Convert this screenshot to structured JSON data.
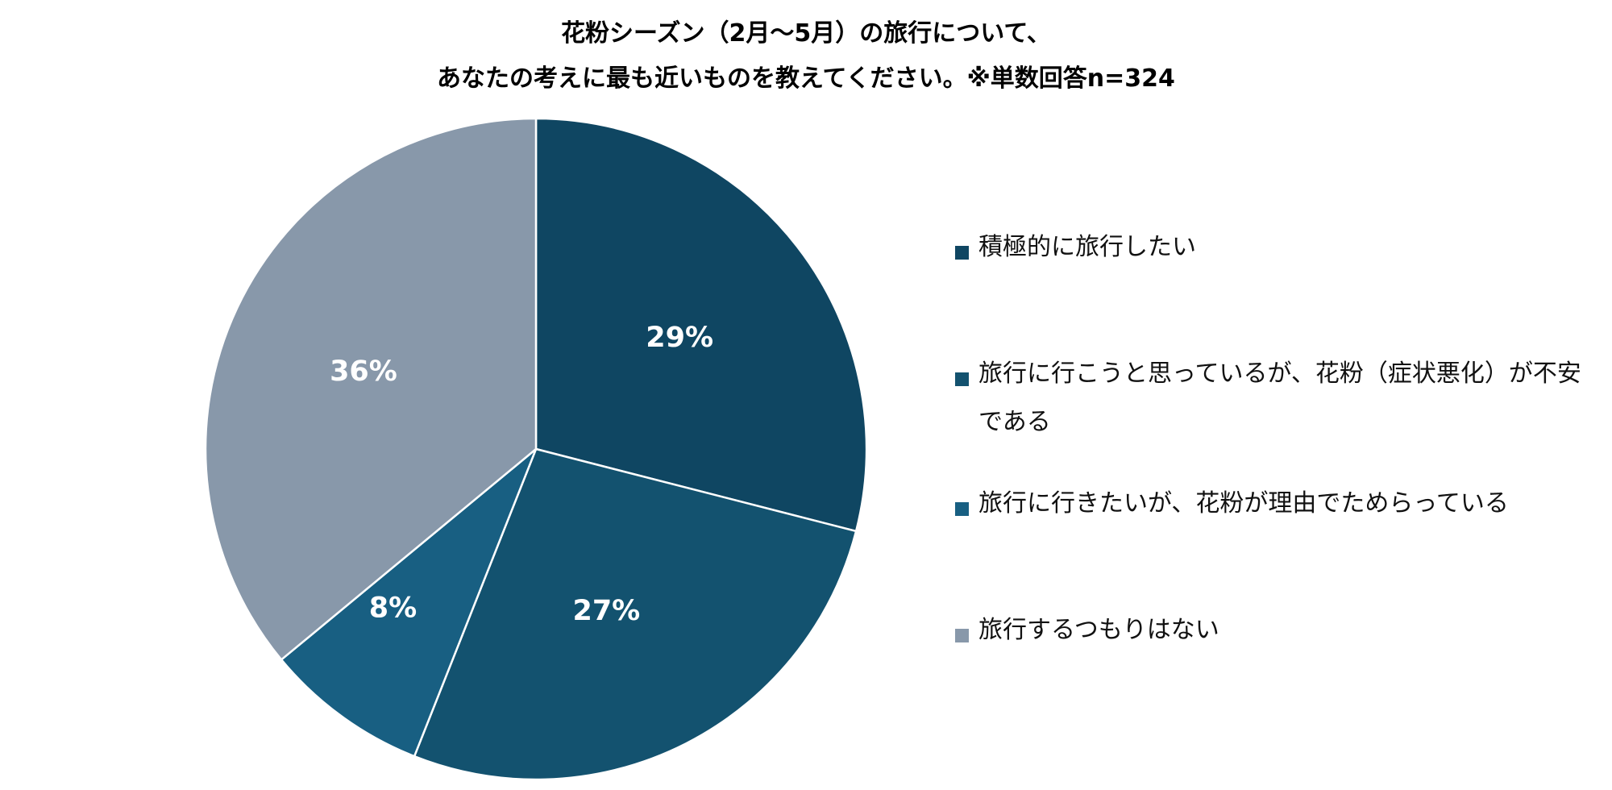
{
  "chart_data": {
    "type": "pie",
    "title_lines": [
      "花粉シーズン（2月～5月）の旅行について、",
      "あなたの考えに最も近いものを教えてください。※単数回答n=324"
    ],
    "slices": [
      {
        "label": "積極的に旅行したい",
        "value": 29,
        "value_label": "29%",
        "color": "#0f4662"
      },
      {
        "label": "旅行に行こうと思っているが、花粉（症状悪化）が不安である",
        "value": 27,
        "value_label": "27%",
        "color": "#13526f"
      },
      {
        "label": "旅行に行きたいが、花粉が理由でためらっている",
        "value": 8,
        "value_label": "8%",
        "color": "#185f82"
      },
      {
        "label": "旅行するつもりはない",
        "value": 36,
        "value_label": "36%",
        "color": "#8898aa"
      }
    ],
    "legend_position": "right",
    "start_angle": "12 o'clock",
    "direction": "clockwise"
  }
}
